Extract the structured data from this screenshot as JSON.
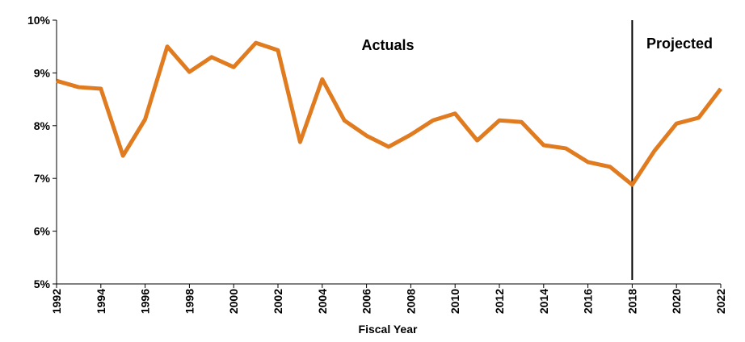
{
  "chart_data": {
    "type": "line",
    "x_label": "Fiscal Year",
    "x": [
      1992,
      1993,
      1994,
      1995,
      1996,
      1997,
      1998,
      1999,
      2000,
      2001,
      2002,
      2003,
      2004,
      2005,
      2006,
      2007,
      2008,
      2009,
      2010,
      2011,
      2012,
      2013,
      2014,
      2015,
      2016,
      2017,
      2018,
      2019,
      2020,
      2021,
      2022
    ],
    "series": [
      {
        "color": "#e07b20",
        "values": [
          8.85,
          8.73,
          8.7,
          7.43,
          8.12,
          9.5,
          9.02,
          9.3,
          9.11,
          9.57,
          9.43,
          7.69,
          8.88,
          8.1,
          7.81,
          7.6,
          7.83,
          8.1,
          8.23,
          7.72,
          8.1,
          8.07,
          7.63,
          7.57,
          7.31,
          7.22,
          6.88,
          7.52,
          8.04,
          8.15,
          8.7
        ]
      }
    ],
    "xlim": [
      1992,
      2022
    ],
    "xticks": [
      1992,
      1994,
      1996,
      1998,
      2000,
      2002,
      2004,
      2006,
      2008,
      2010,
      2012,
      2014,
      2016,
      2018,
      2020,
      2022
    ],
    "ylim": [
      5,
      10
    ],
    "yticks": [
      {
        "value": 5,
        "label": "5%"
      },
      {
        "value": 6,
        "label": "6%"
      },
      {
        "value": 7,
        "label": "7%"
      },
      {
        "value": 8,
        "label": "8%"
      },
      {
        "value": 9,
        "label": "9%"
      },
      {
        "value": 10,
        "label": "10%"
      }
    ],
    "vline_x": 2018,
    "annotations": [
      "Actuals",
      "Projected"
    ],
    "grid": false
  }
}
